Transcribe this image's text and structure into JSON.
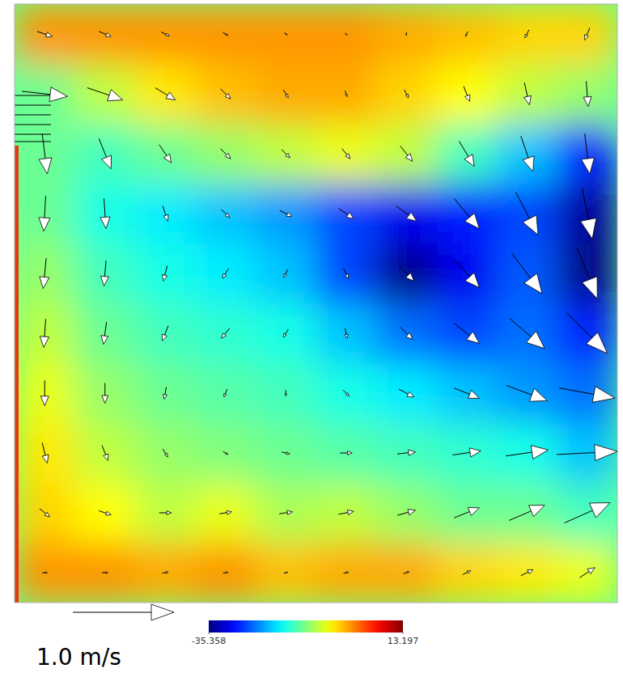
{
  "chart_data": {
    "type": "vector_field",
    "xlim": [
      0,
      1
    ],
    "ylim": [
      0,
      1
    ],
    "tick_labels": false,
    "x": [
      0.05,
      0.15,
      0.25,
      0.35,
      0.45,
      0.55,
      0.65,
      0.75,
      0.85,
      0.95
    ],
    "y": [
      0.95,
      0.85,
      0.75,
      0.65,
      0.55,
      0.45,
      0.35,
      0.25,
      0.15,
      0.05
    ],
    "u": [
      [
        0.15,
        0.12,
        0.08,
        0.05,
        0.03,
        0.02,
        0.0,
        -0.02,
        -0.04,
        -0.05
      ],
      [
        0.45,
        0.35,
        0.2,
        0.1,
        0.05,
        0.02,
        0.04,
        0.06,
        0.05,
        0.02
      ],
      [
        0.05,
        0.12,
        0.12,
        0.1,
        0.08,
        0.08,
        0.12,
        0.15,
        0.12,
        0.05
      ],
      [
        -0.02,
        0.02,
        0.05,
        0.08,
        0.12,
        0.15,
        0.2,
        0.25,
        0.22,
        0.1
      ],
      [
        -0.03,
        -0.02,
        -0.04,
        -0.06,
        -0.04,
        0.05,
        0.15,
        0.25,
        0.3,
        0.2
      ],
      [
        -0.02,
        -0.03,
        -0.06,
        -0.08,
        -0.05,
        0.02,
        0.12,
        0.25,
        0.35,
        0.4
      ],
      [
        0.0,
        0.0,
        -0.02,
        -0.03,
        0.0,
        0.06,
        0.15,
        0.25,
        0.4,
        0.55
      ],
      [
        0.05,
        0.06,
        0.05,
        0.05,
        0.08,
        0.12,
        0.18,
        0.28,
        0.42,
        0.6
      ],
      [
        0.1,
        0.12,
        0.12,
        0.12,
        0.13,
        0.15,
        0.18,
        0.25,
        0.35,
        0.45
      ],
      [
        0.05,
        0.06,
        0.06,
        0.05,
        0.04,
        0.05,
        0.06,
        0.08,
        0.12,
        0.15
      ]
    ],
    "v": [
      [
        -0.05,
        -0.05,
        -0.04,
        -0.03,
        -0.02,
        -0.02,
        -0.03,
        -0.05,
        -0.08,
        -0.12
      ],
      [
        -0.05,
        -0.12,
        -0.12,
        -0.1,
        -0.08,
        -0.06,
        -0.08,
        -0.15,
        -0.22,
        -0.25
      ],
      [
        -0.4,
        -0.3,
        -0.18,
        -0.1,
        -0.08,
        -0.1,
        -0.15,
        -0.25,
        -0.35,
        -0.4
      ],
      [
        -0.35,
        -0.3,
        -0.15,
        -0.08,
        -0.06,
        -0.1,
        -0.15,
        -0.3,
        -0.42,
        -0.5
      ],
      [
        -0.3,
        -0.25,
        -0.15,
        -0.1,
        -0.08,
        -0.1,
        -0.15,
        -0.28,
        -0.4,
        -0.5
      ],
      [
        -0.28,
        -0.22,
        -0.15,
        -0.1,
        -0.08,
        -0.1,
        -0.12,
        -0.2,
        -0.3,
        -0.4
      ],
      [
        -0.25,
        -0.2,
        -0.12,
        -0.08,
        -0.06,
        -0.06,
        -0.08,
        -0.1,
        -0.15,
        -0.1
      ],
      [
        -0.2,
        -0.15,
        -0.08,
        -0.03,
        -0.02,
        0.0,
        0.02,
        0.04,
        0.06,
        0.03
      ],
      [
        -0.08,
        -0.04,
        0.0,
        0.02,
        0.02,
        0.03,
        0.05,
        0.1,
        0.15,
        0.2
      ],
      [
        0.0,
        0.0,
        0.01,
        0.01,
        0.01,
        0.01,
        0.02,
        0.04,
        0.06,
        0.1
      ]
    ],
    "field": [
      [
        0,
        0,
        0,
        0,
        0,
        0,
        -1,
        -2,
        -3,
        -3
      ],
      [
        -12,
        -8,
        -4,
        -2,
        -1,
        -1,
        -3,
        -5,
        -8,
        -10
      ],
      [
        -12,
        -14,
        -12,
        -10,
        -8,
        -6,
        -8,
        -14,
        -20,
        -28
      ],
      [
        -12,
        -16,
        -18,
        -20,
        -22,
        -26,
        -30,
        -28,
        -26,
        -34
      ],
      [
        -10,
        -14,
        -16,
        -18,
        -20,
        -26,
        -35,
        -30,
        -25,
        -35
      ],
      [
        -8,
        -12,
        -14,
        -15,
        -16,
        -20,
        -24,
        -26,
        -24,
        -28
      ],
      [
        -6,
        -10,
        -12,
        -13,
        -14,
        -16,
        -18,
        -20,
        -22,
        -24
      ],
      [
        -4,
        -8,
        -10,
        -11,
        -12,
        -13,
        -14,
        -15,
        -16,
        -20
      ],
      [
        -3,
        -5,
        -8,
        -6,
        -9,
        -8,
        -10,
        -12,
        -12,
        -14
      ],
      [
        0,
        0,
        -1,
        0,
        -2,
        -1,
        -1,
        -3,
        -4,
        -6
      ]
    ],
    "colorbar": {
      "range": [
        -35.358,
        13.197
      ],
      "ticks": [
        -35.358,
        13.197
      ]
    },
    "scale_arrow": {
      "value": 1.0,
      "label": "1.0 m/s"
    }
  }
}
